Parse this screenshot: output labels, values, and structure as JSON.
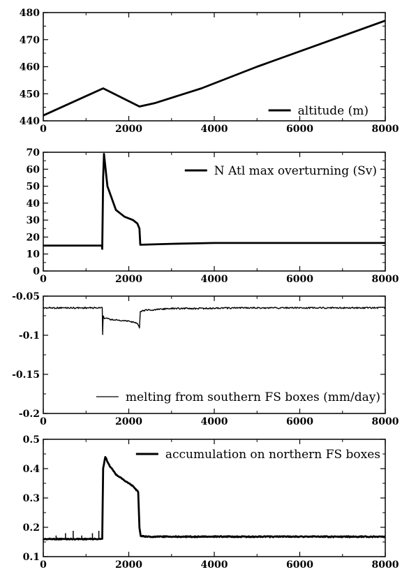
{
  "chart_data": [
    {
      "type": "line",
      "xlim": [
        0,
        8000
      ],
      "ylim": [
        440,
        480
      ],
      "xticks": [
        "0",
        "2000",
        "4000",
        "6000",
        "8000"
      ],
      "yticks": [
        "440",
        "450",
        "460",
        "470",
        "480"
      ],
      "legend": "altitude (m)",
      "legend_position": "bottom-right",
      "series": [
        {
          "name": "altitude (m)",
          "x": [
            0,
            1400,
            2250,
            2600,
            3700,
            5000,
            6500,
            8000
          ],
          "y": [
            442,
            452,
            445.3,
            446.5,
            452,
            460,
            468.5,
            477
          ]
        }
      ]
    },
    {
      "type": "line",
      "xlim": [
        0,
        8000
      ],
      "ylim": [
        0,
        70
      ],
      "xticks": [
        "0",
        "2000",
        "4000",
        "6000",
        "8000"
      ],
      "yticks": [
        "0",
        "10",
        "20",
        "30",
        "40",
        "50",
        "60",
        "70"
      ],
      "legend": "N Atl max overturning (Sv)",
      "legend_position": "top-right",
      "series": [
        {
          "name": "N Atl max overturning (Sv)",
          "x": [
            0,
            1370,
            1380,
            1400,
            1420,
            1500,
            1700,
            1900,
            2100,
            2200,
            2250,
            2270,
            2300,
            3000,
            4000,
            6000,
            8000
          ],
          "y": [
            15,
            15,
            13,
            55,
            69,
            50,
            36,
            32,
            30,
            28,
            25,
            15.5,
            15.5,
            16,
            16.5,
            16.5,
            16.5
          ]
        }
      ]
    },
    {
      "type": "line",
      "xlim": [
        0,
        8000
      ],
      "ylim": [
        -0.2,
        -0.05
      ],
      "xticks": [
        "0",
        "2000",
        "4000",
        "6000",
        "8000"
      ],
      "yticks": [
        "-0.2",
        "-0.15",
        "-0.1",
        "-0.05"
      ],
      "legend": "melting from southern FS boxes (mm/day)",
      "legend_position": "bottom-right",
      "series": [
        {
          "name": "melting from southern FS boxes (mm/day)",
          "x": [
            0,
            1380,
            1390,
            1400,
            1420,
            1600,
            1800,
            2000,
            2200,
            2250,
            2270,
            2400,
            3000,
            5000,
            8000
          ],
          "y": [
            -0.065,
            -0.065,
            -0.1,
            -0.075,
            -0.078,
            -0.08,
            -0.081,
            -0.082,
            -0.085,
            -0.09,
            -0.07,
            -0.068,
            -0.066,
            -0.065,
            -0.065
          ]
        }
      ]
    },
    {
      "type": "line",
      "xlim": [
        0,
        8000
      ],
      "ylim": [
        0.1,
        0.5
      ],
      "xticks": [
        "0",
        "2000",
        "4000",
        "6000",
        "8000"
      ],
      "yticks": [
        "0.1",
        "0.2",
        "0.3",
        "0.4",
        "0.5"
      ],
      "legend": "accumulation on northern FS boxes",
      "legend_position": "top-right",
      "series": [
        {
          "name": "accumulation on northern FS boxes",
          "x": [
            0,
            1380,
            1400,
            1450,
            1550,
            1700,
            1900,
            2100,
            2220,
            2250,
            2280,
            2400,
            4000,
            8000
          ],
          "y": [
            0.16,
            0.16,
            0.4,
            0.44,
            0.41,
            0.38,
            0.36,
            0.34,
            0.32,
            0.2,
            0.17,
            0.168,
            0.168,
            0.168
          ]
        }
      ]
    }
  ]
}
